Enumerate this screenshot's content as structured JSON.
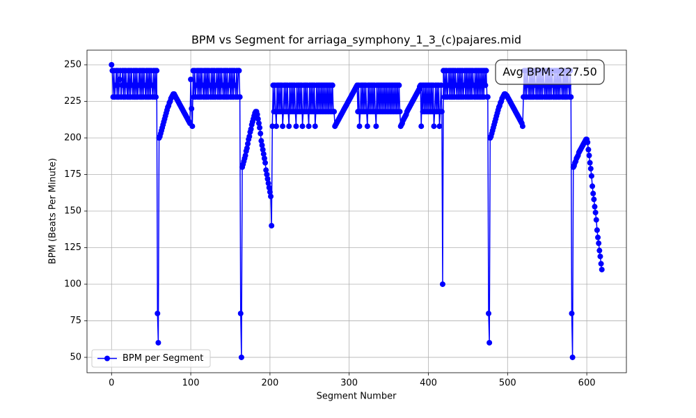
{
  "chart_data": {
    "type": "line",
    "title": "BPM vs Segment for arriaga_symphony_1_3_(c)pajares.mid",
    "x_label": "Segment Number",
    "y_label": "BPM (Beats Per Minute)",
    "annotation": "Avg BPM: 227.50",
    "legend": "lower left",
    "grid": true,
    "xlim": [
      -31,
      650
    ],
    "xticks": [
      0,
      100,
      200,
      300,
      400,
      500,
      600
    ],
    "ylim": [
      39.5,
      260
    ],
    "yticks": [
      50,
      75,
      100,
      125,
      150,
      175,
      200,
      225,
      250
    ],
    "series": [
      {
        "name": "BPM per Segment",
        "color": "#0000ff",
        "values": [
          250,
          246,
          228,
          246,
          228,
          236,
          246,
          228,
          246,
          228,
          240,
          246,
          228,
          236,
          246,
          228,
          246,
          228,
          246,
          236,
          228,
          246,
          228,
          246,
          228,
          246,
          236,
          228,
          246,
          228,
          246,
          228,
          246,
          228,
          236,
          246,
          228,
          246,
          228,
          246,
          228,
          246,
          236,
          228,
          246,
          228,
          246,
          228,
          246,
          228,
          246,
          236,
          228,
          246,
          228,
          246,
          228,
          246,
          80,
          60,
          200,
          201,
          203,
          205,
          207,
          209,
          211,
          213,
          215,
          217,
          219,
          221,
          222,
          224,
          225,
          227,
          228,
          229,
          230,
          230,
          229,
          228,
          227,
          226,
          225,
          224,
          223,
          222,
          221,
          220,
          219,
          218,
          217,
          216,
          215,
          214,
          213,
          212,
          211,
          210,
          240,
          220,
          208,
          246,
          228,
          246,
          228,
          236,
          246,
          228,
          246,
          228,
          246,
          228,
          246,
          236,
          228,
          246,
          228,
          246,
          228,
          246,
          228,
          246,
          236,
          228,
          246,
          228,
          246,
          228,
          246,
          228,
          236,
          246,
          228,
          246,
          228,
          246,
          228,
          246,
          236,
          228,
          246,
          228,
          246,
          228,
          246,
          228,
          236,
          246,
          228,
          246,
          228,
          246,
          228,
          246,
          236,
          228,
          246,
          228,
          246,
          246,
          228,
          80,
          50,
          180,
          182,
          184,
          186,
          188,
          191,
          193,
          196,
          199,
          201,
          204,
          206,
          209,
          211,
          213,
          215,
          217,
          218,
          218,
          216,
          213,
          210,
          207,
          203,
          198,
          195,
          192,
          189,
          186,
          183,
          178,
          175,
          172,
          169,
          166,
          163,
          160,
          140,
          208,
          236,
          218,
          236,
          218,
          208,
          236,
          218,
          236,
          218,
          236,
          218,
          236,
          208,
          218,
          236,
          218,
          236,
          218,
          236,
          218,
          208,
          236,
          218,
          236,
          218,
          236,
          218,
          236,
          218,
          208,
          236,
          218,
          236,
          218,
          236,
          218,
          236,
          208,
          218,
          236,
          218,
          236,
          218,
          236,
          218,
          208,
          236,
          218,
          236,
          218,
          236,
          218,
          236,
          208,
          218,
          236,
          218,
          236,
          218,
          236,
          218,
          236,
          218,
          236,
          218,
          236,
          218,
          236,
          218,
          236,
          218,
          236,
          218,
          236,
          218,
          236,
          218,
          218,
          208,
          209,
          210,
          211,
          212,
          213,
          214,
          215,
          216,
          217,
          218,
          219,
          220,
          221,
          222,
          223,
          224,
          225,
          226,
          227,
          228,
          229,
          230,
          231,
          232,
          233,
          234,
          235,
          236,
          218,
          236,
          208,
          218,
          236,
          218,
          236,
          218,
          236,
          218,
          236,
          218,
          208,
          236,
          218,
          236,
          218,
          236,
          218,
          236,
          218,
          236,
          218,
          208,
          236,
          218,
          236,
          218,
          236,
          218,
          236,
          218,
          236,
          218,
          236,
          218,
          236,
          218,
          236,
          218,
          236,
          218,
          236,
          218,
          236,
          218,
          236,
          218,
          236,
          218,
          236,
          218,
          236,
          218,
          208,
          209,
          210,
          212,
          213,
          214,
          215,
          216,
          218,
          219,
          220,
          221,
          222,
          223,
          224,
          225,
          226,
          227,
          228,
          229,
          230,
          231,
          232,
          233,
          235,
          236,
          208,
          236,
          218,
          236,
          218,
          236,
          218,
          236,
          218,
          236,
          218,
          236,
          218,
          236,
          218,
          236,
          208,
          218,
          236,
          218,
          236,
          218,
          236,
          208,
          218,
          236,
          218,
          100,
          246,
          228,
          246,
          228,
          246,
          228,
          236,
          246,
          228,
          246,
          228,
          246,
          228,
          246,
          228,
          246,
          236,
          228,
          246,
          228,
          246,
          228,
          246,
          228,
          246,
          228,
          236,
          246,
          228,
          246,
          228,
          246,
          228,
          246,
          228,
          246,
          228,
          246,
          236,
          228,
          246,
          228,
          246,
          228,
          246,
          228,
          246,
          228,
          246,
          228,
          246,
          228,
          246,
          236,
          246,
          228,
          228,
          80,
          60,
          200,
          201,
          203,
          205,
          207,
          209,
          211,
          213,
          215,
          217,
          219,
          221,
          222,
          224,
          225,
          227,
          228,
          229,
          230,
          230,
          229,
          229,
          228,
          227,
          226,
          225,
          224,
          223,
          222,
          221,
          220,
          219,
          218,
          217,
          216,
          215,
          214,
          213,
          212,
          211,
          210,
          208,
          228,
          246,
          228,
          246,
          228,
          246,
          236,
          228,
          246,
          228,
          246,
          228,
          246,
          228,
          246,
          236,
          228,
          246,
          228,
          246,
          228,
          246,
          228,
          246,
          228,
          246,
          236,
          228,
          246,
          228,
          246,
          228,
          246,
          228,
          246,
          228,
          246,
          236,
          228,
          246,
          228,
          246,
          228,
          246,
          228,
          246,
          228,
          246,
          236,
          228,
          246,
          228,
          246,
          228,
          246,
          228,
          246,
          236,
          228,
          246,
          228,
          80,
          50,
          180,
          181,
          183,
          184,
          186,
          187,
          188,
          190,
          191,
          192,
          193,
          194,
          195,
          196,
          197,
          198,
          199,
          199,
          197,
          192,
          188,
          183,
          179,
          174,
          167,
          162,
          158,
          153,
          149,
          144,
          137,
          132,
          128,
          123,
          119,
          114,
          110
        ]
      }
    ]
  }
}
